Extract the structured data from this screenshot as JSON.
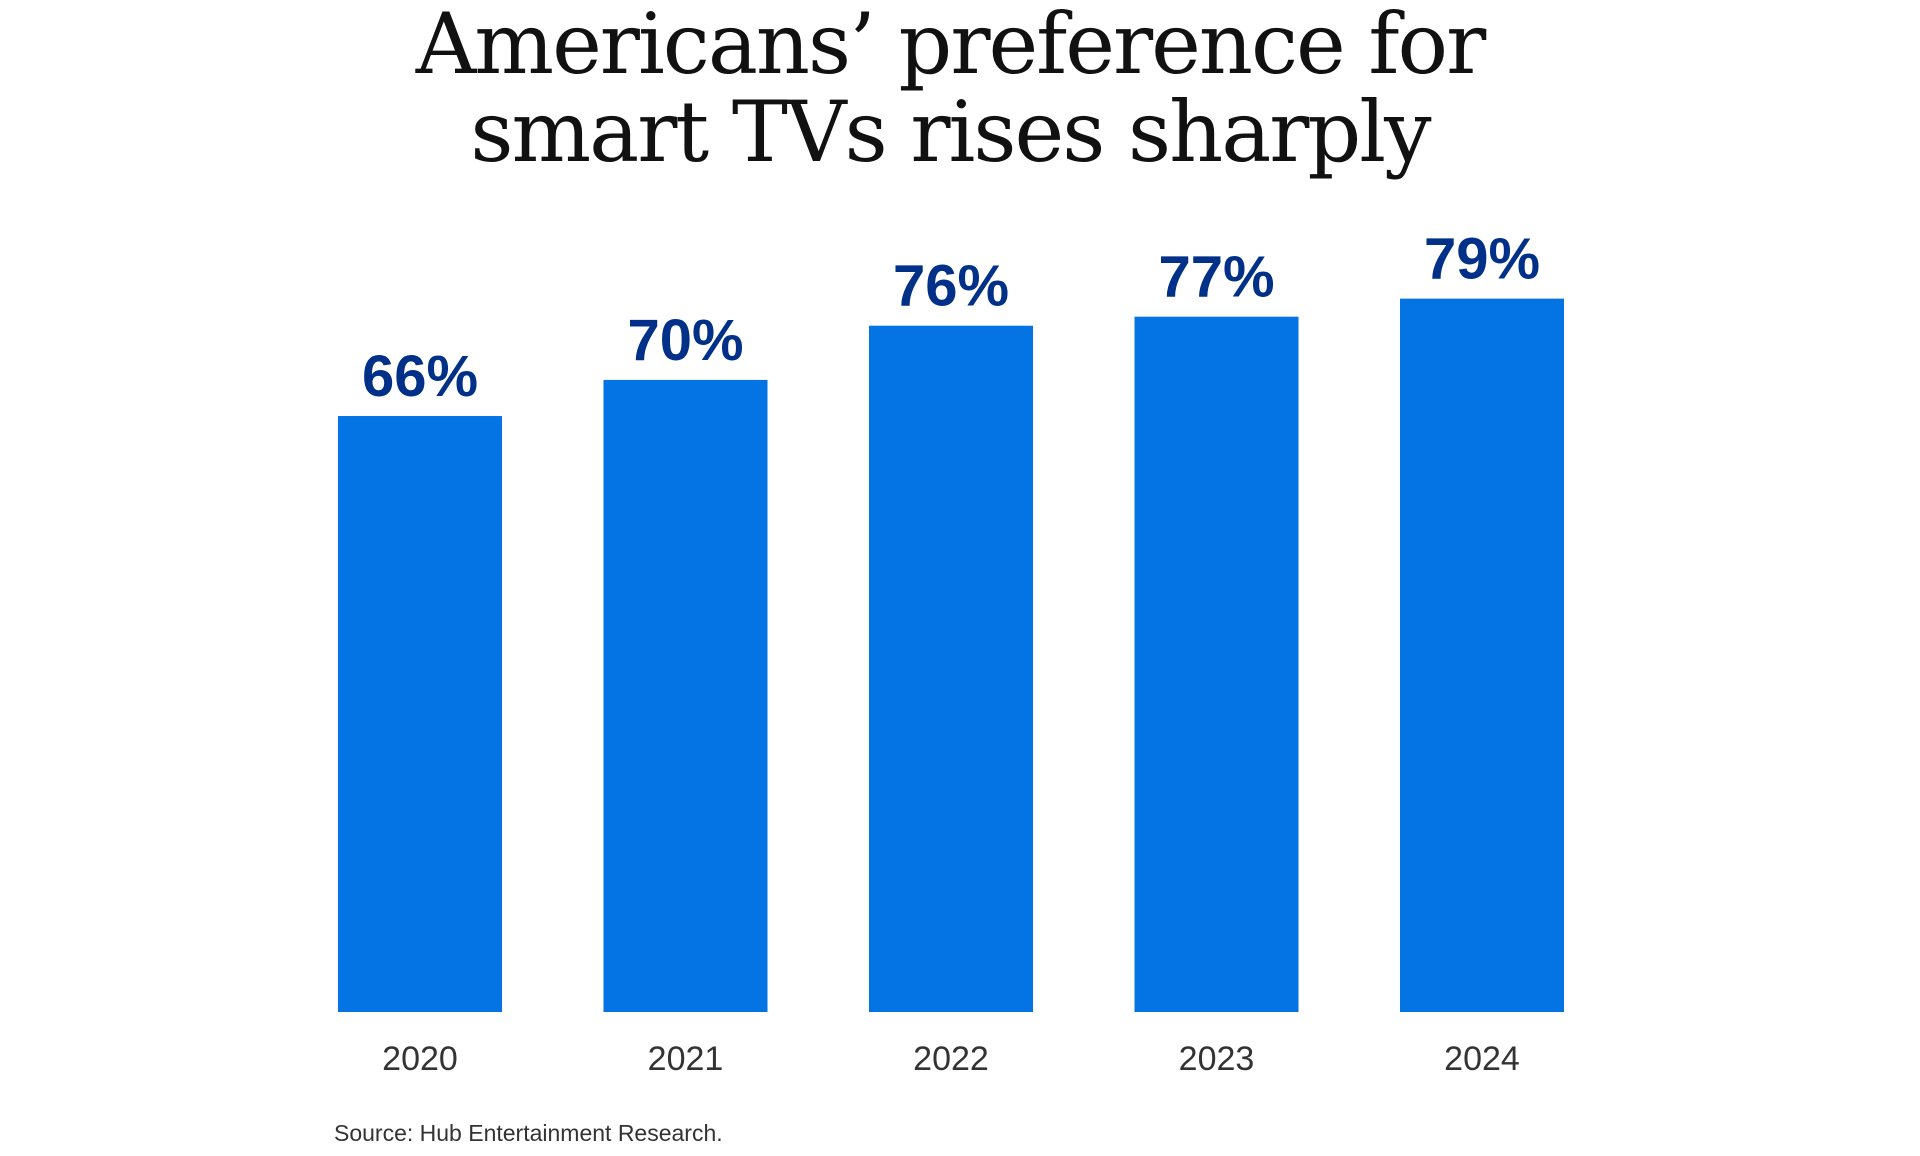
{
  "chart_data": {
    "type": "bar",
    "title_lines": [
      "Americans’ preference for",
      "smart TVs rises sharply"
    ],
    "categories": [
      "2020",
      "2021",
      "2022",
      "2023",
      "2024"
    ],
    "values": [
      66,
      70,
      76,
      77,
      79
    ],
    "data_labels": [
      "66%",
      "70%",
      "76%",
      "77%",
      "79%"
    ],
    "ylim": [
      0,
      100
    ],
    "grid": false,
    "colors": {
      "bar": "#0473E3",
      "label": "#003087"
    },
    "source": "Source: Hub Entertainment Research."
  }
}
